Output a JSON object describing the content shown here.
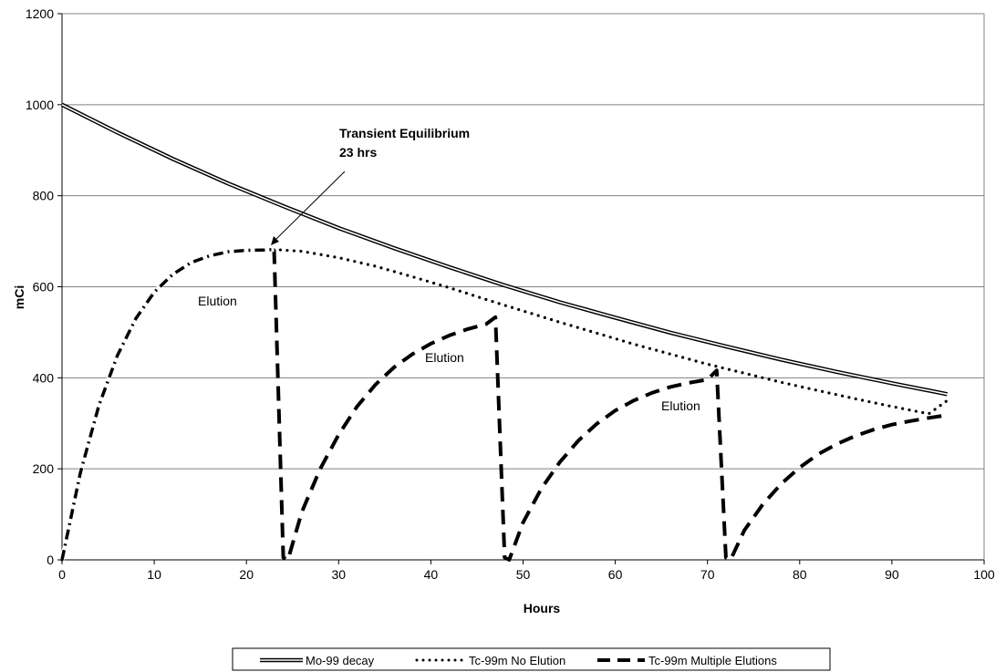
{
  "chart_data": {
    "type": "line",
    "xlabel": "Hours",
    "ylabel": "mCi",
    "xlim": [
      0,
      100
    ],
    "ylim": [
      0,
      1200
    ],
    "x_ticks": [
      "0",
      "10",
      "20",
      "30",
      "40",
      "50",
      "60",
      "70",
      "80",
      "90",
      "100"
    ],
    "y_ticks": [
      "0",
      "200",
      "400",
      "600",
      "800",
      "1000",
      "1200"
    ],
    "grid": "horizontal",
    "legend": "bottom",
    "series": [
      {
        "name": "Mo-99 decay",
        "style": "double-line",
        "color": "#000000",
        "x": [
          0,
          6,
          12,
          18,
          24,
          30,
          36,
          42,
          48,
          54,
          60,
          66,
          72,
          78,
          84,
          90,
          96
        ],
        "y": [
          1000,
          939,
          881,
          827,
          777,
          729,
          685,
          643,
          603,
          566,
          532,
          499,
          469,
          440,
          413,
          388,
          364
        ]
      },
      {
        "name": "Tc-99m No Elution",
        "style": "dotted",
        "color": "#000000",
        "x": [
          0,
          2,
          4,
          6,
          8,
          10,
          12,
          14,
          16,
          18,
          20,
          22,
          23,
          26,
          30,
          34,
          38,
          42,
          46,
          50,
          54,
          58,
          62,
          66,
          70,
          74,
          78,
          82,
          86,
          90,
          94,
          96
        ],
        "y": [
          0,
          192,
          339,
          449,
          530,
          588,
          627,
          653,
          668,
          677,
          680,
          681,
          682,
          678,
          664,
          645,
          622,
          598,
          572,
          547,
          522,
          498,
          474,
          452,
          430,
          410,
          390,
          372,
          354,
          337,
          321,
          350
        ]
      },
      {
        "name": "Tc-99m Multiple Elutions",
        "style": "dashed",
        "color": "#000000",
        "x": [
          23,
          24,
          24.5,
          26,
          28,
          30,
          32,
          34,
          36,
          38,
          40,
          42,
          44,
          46,
          47,
          48,
          48.5,
          50,
          52,
          54,
          56,
          58,
          60,
          62,
          64,
          66,
          68,
          70,
          71,
          72,
          72.5,
          74,
          76,
          78,
          80,
          82,
          84,
          86,
          88,
          90,
          92,
          94,
          96
        ],
        "y": [
          682,
          5,
          0,
          105,
          200,
          275,
          337,
          385,
          423,
          452,
          475,
          493,
          507,
          518,
          533,
          5,
          0,
          82,
          157,
          215,
          262,
          299,
          328,
          350,
          367,
          380,
          389,
          396,
          416,
          5,
          0,
          65,
          122,
          167,
          203,
          232,
          254,
          272,
          286,
          297,
          305,
          312,
          318
        ]
      }
    ],
    "annotations": [
      {
        "text": "Transient Equilibrium",
        "style": "bold"
      },
      {
        "text": "23 hrs",
        "style": "bold"
      },
      {
        "text": "Elution",
        "style": "normal"
      },
      {
        "text": "Elution",
        "style": "normal"
      },
      {
        "text": "Elution",
        "style": "normal"
      }
    ]
  }
}
